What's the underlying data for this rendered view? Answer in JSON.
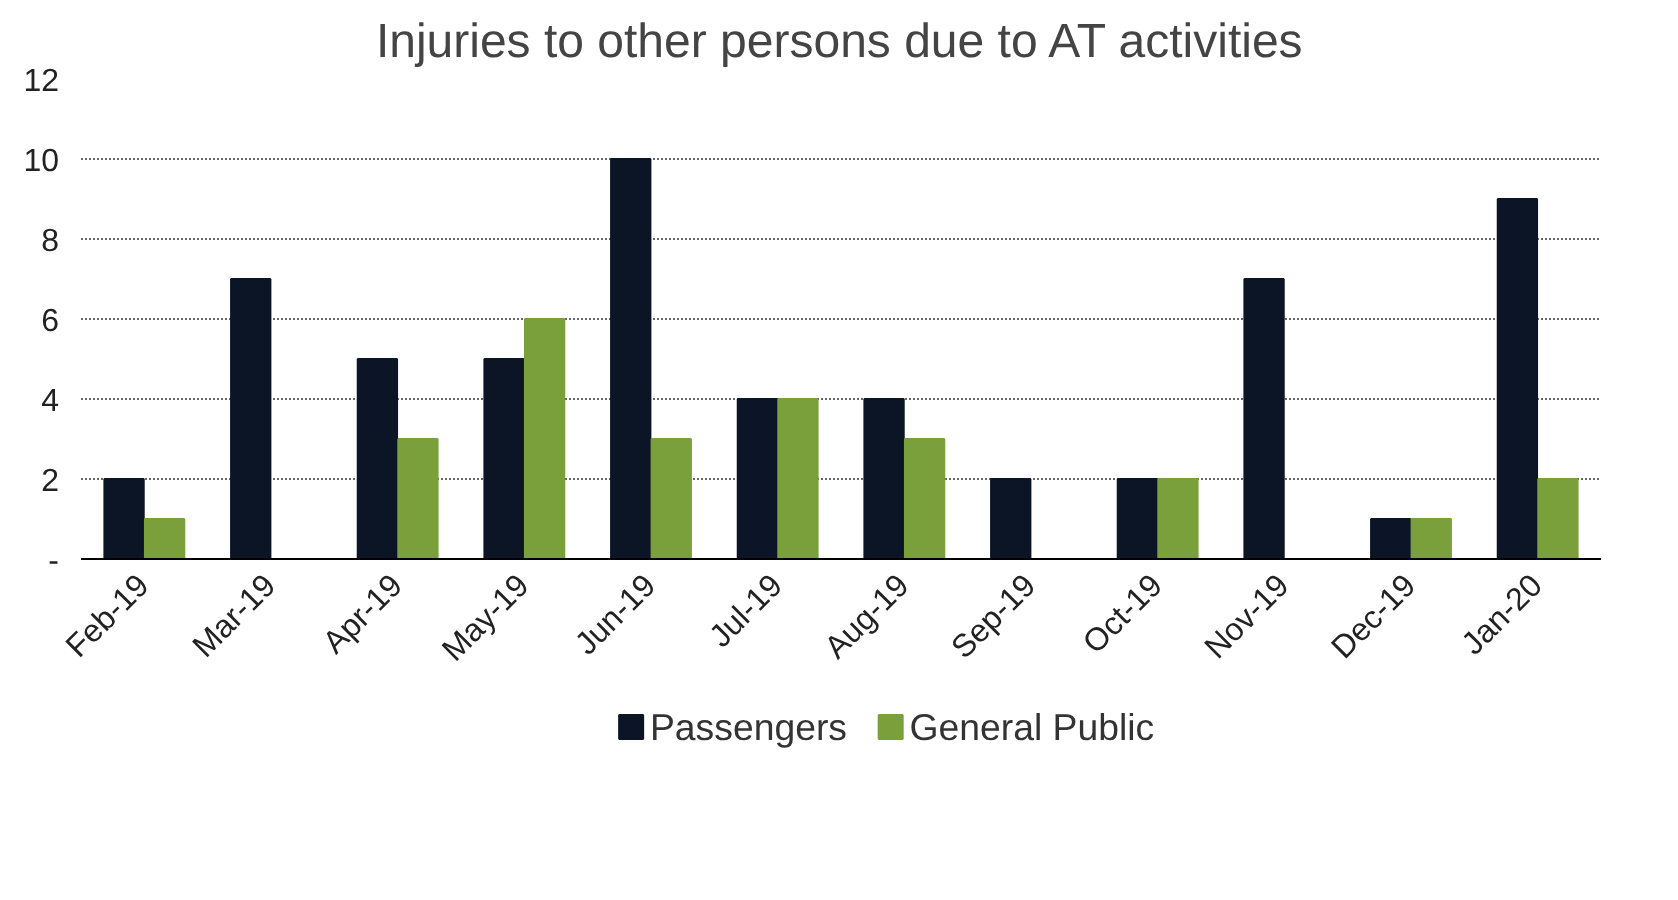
{
  "chart_data": {
    "type": "bar",
    "title": "Injuries to other persons due to AT activities",
    "categories": [
      "Feb-19",
      "Mar-19",
      "Apr-19",
      "May-19",
      "Jun-19",
      "Jul-19",
      "Aug-19",
      "Sep-19",
      "Oct-19",
      "Nov-19",
      "Dec-19",
      "Jan-20"
    ],
    "series": [
      {
        "name": "Passengers",
        "color": "#0b1526",
        "values": [
          2,
          7,
          5,
          5,
          10,
          4,
          4,
          2,
          2,
          7,
          1,
          9
        ]
      },
      {
        "name": "General Public",
        "color": "#7aa03c",
        "values": [
          1,
          0,
          3,
          6,
          3,
          4,
          3,
          0,
          2,
          0,
          1,
          2
        ]
      }
    ],
    "ylim": [
      0,
      12
    ],
    "yticks": [
      {
        "value": 0,
        "label": "-"
      },
      2,
      4,
      6,
      8,
      10,
      12
    ],
    "grid": "y",
    "legend": "bottom"
  }
}
